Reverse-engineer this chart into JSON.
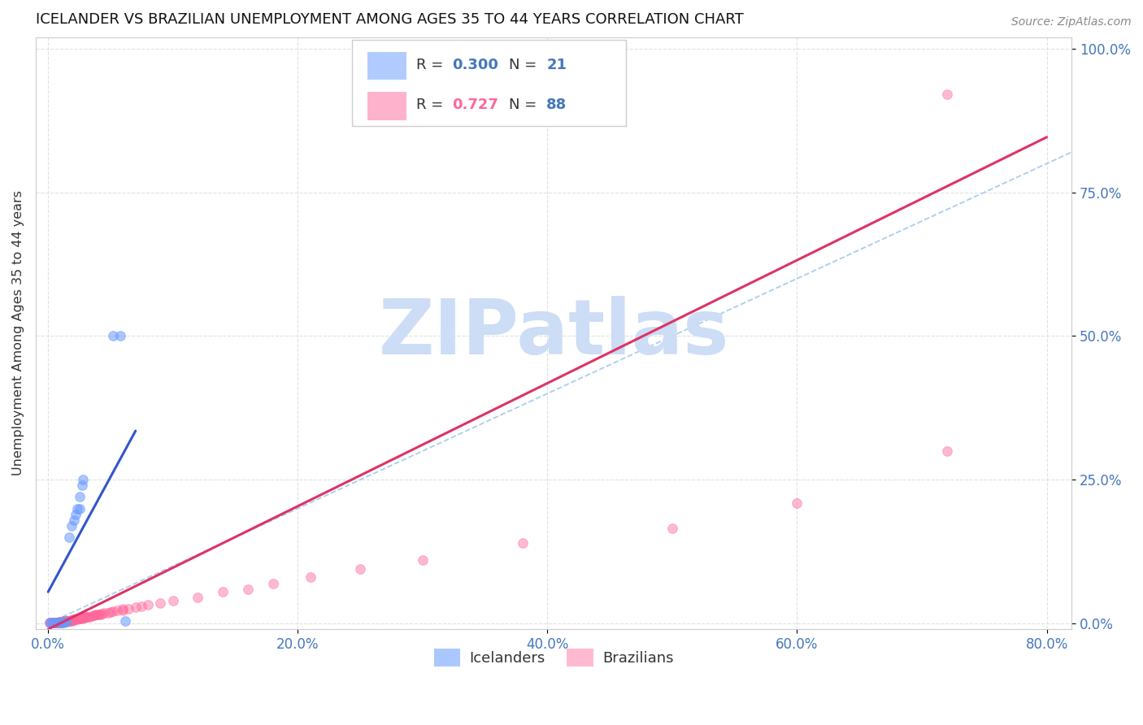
{
  "title": "ICELANDER VS BRAZILIAN UNEMPLOYMENT AMONG AGES 35 TO 44 YEARS CORRELATION CHART",
  "source": "Source: ZipAtlas.com",
  "xlabel_ticks": [
    "0.0%",
    "",
    "",
    "",
    "",
    "20.0%",
    "",
    "",
    "",
    "",
    "40.0%",
    "",
    "",
    "",
    "",
    "60.0%",
    "",
    "",
    "",
    "",
    "80.0%"
  ],
  "xlabel_vals": [
    0.0,
    0.04,
    0.08,
    0.12,
    0.16,
    0.2,
    0.24,
    0.28,
    0.32,
    0.36,
    0.4,
    0.44,
    0.48,
    0.52,
    0.56,
    0.6,
    0.64,
    0.68,
    0.72,
    0.76,
    0.8
  ],
  "xlabel_major_ticks": [
    0.0,
    0.2,
    0.4,
    0.6,
    0.8
  ],
  "xlabel_major_labels": [
    "0.0%",
    "20.0%",
    "40.0%",
    "60.0%",
    "80.0%"
  ],
  "ylabel_major_ticks": [
    0.0,
    0.25,
    0.5,
    0.75,
    1.0
  ],
  "ylabel_major_labels": [
    "0.0%",
    "25.0%",
    "50.0%",
    "75.0%",
    "100.0%"
  ],
  "ylabel_label": "Unemployment Among Ages 35 to 44 years",
  "xlim": [
    -0.01,
    0.82
  ],
  "ylim": [
    -0.01,
    1.02
  ],
  "iceland_R": "0.300",
  "iceland_N": "21",
  "brazil_R": "0.727",
  "brazil_N": "88",
  "iceland_color": "#6699ff",
  "brazil_color": "#ff6699",
  "iceland_marker_size": 70,
  "brazil_marker_size": 70,
  "iceland_scatter_x": [
    0.001,
    0.003,
    0.005,
    0.007,
    0.009,
    0.011,
    0.012,
    0.013,
    0.015,
    0.017,
    0.019,
    0.021,
    0.022,
    0.023,
    0.025,
    0.025,
    0.027,
    0.028,
    0.052,
    0.058,
    0.062
  ],
  "iceland_scatter_y": [
    0.001,
    0.001,
    0.002,
    0.001,
    0.003,
    0.002,
    0.002,
    0.003,
    0.003,
    0.15,
    0.17,
    0.18,
    0.19,
    0.2,
    0.2,
    0.22,
    0.24,
    0.25,
    0.5,
    0.5,
    0.005
  ],
  "brazil_scatter_x": [
    0.001,
    0.002,
    0.003,
    0.003,
    0.004,
    0.005,
    0.005,
    0.006,
    0.006,
    0.007,
    0.007,
    0.008,
    0.008,
    0.009,
    0.009,
    0.01,
    0.01,
    0.011,
    0.011,
    0.012,
    0.012,
    0.013,
    0.013,
    0.014,
    0.014,
    0.015,
    0.015,
    0.016,
    0.016,
    0.017,
    0.018,
    0.018,
    0.019,
    0.019,
    0.02,
    0.02,
    0.021,
    0.021,
    0.022,
    0.022,
    0.023,
    0.023,
    0.024,
    0.024,
    0.025,
    0.026,
    0.027,
    0.027,
    0.028,
    0.029,
    0.03,
    0.03,
    0.031,
    0.032,
    0.033,
    0.035,
    0.036,
    0.037,
    0.038,
    0.04,
    0.04,
    0.042,
    0.043,
    0.045,
    0.048,
    0.05,
    0.052,
    0.055,
    0.06,
    0.06,
    0.064,
    0.07,
    0.075,
    0.08,
    0.09,
    0.1,
    0.12,
    0.14,
    0.16,
    0.18,
    0.21,
    0.25,
    0.3,
    0.38,
    0.5,
    0.6,
    0.72,
    0.72
  ],
  "brazil_scatter_y": [
    0.001,
    0.001,
    0.002,
    0.001,
    0.001,
    0.002,
    0.001,
    0.002,
    0.001,
    0.002,
    0.001,
    0.002,
    0.001,
    0.002,
    0.003,
    0.002,
    0.003,
    0.003,
    0.002,
    0.003,
    0.004,
    0.003,
    0.004,
    0.004,
    0.003,
    0.004,
    0.005,
    0.004,
    0.005,
    0.005,
    0.005,
    0.006,
    0.005,
    0.006,
    0.006,
    0.007,
    0.006,
    0.007,
    0.007,
    0.008,
    0.007,
    0.008,
    0.008,
    0.009,
    0.008,
    0.009,
    0.009,
    0.01,
    0.01,
    0.01,
    0.011,
    0.012,
    0.011,
    0.012,
    0.012,
    0.013,
    0.014,
    0.014,
    0.015,
    0.015,
    0.016,
    0.016,
    0.017,
    0.018,
    0.019,
    0.02,
    0.021,
    0.022,
    0.023,
    0.025,
    0.026,
    0.028,
    0.03,
    0.032,
    0.035,
    0.04,
    0.045,
    0.055,
    0.06,
    0.07,
    0.08,
    0.095,
    0.11,
    0.14,
    0.165,
    0.21,
    0.3,
    0.92
  ],
  "iceland_line_x": [
    0.0,
    0.07
  ],
  "iceland_line_slope": 4.0,
  "iceland_line_intercept": 0.055,
  "brazil_line_x": [
    0.0,
    0.8
  ],
  "brazil_line_slope": 1.07,
  "brazil_line_intercept": -0.01,
  "identity_line_color": "#aaccee",
  "identity_line_style": "--",
  "iceland_line_color": "#3355cc",
  "brazil_line_color": "#dd3366",
  "watermark_text": "ZIPatlas",
  "watermark_color": "#ccddf5",
  "background_color": "#ffffff",
  "title_fontsize": 13,
  "axis_tick_color": "#4477bb",
  "grid_color": "#e0e0e0",
  "source_text": "Source: ZipAtlas.com",
  "legend_iceland_label": "Icelanders",
  "legend_brazil_label": "Brazilians"
}
